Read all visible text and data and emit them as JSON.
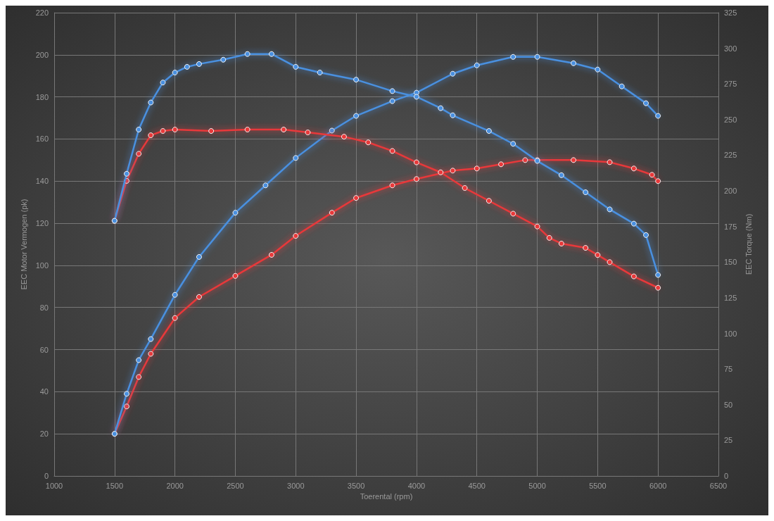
{
  "chart_data": {
    "type": "line",
    "xlabel": "Toerental (rpm)",
    "ylabel": "EEC Motor Vermogen (pk)",
    "y2label": "EEC Torque (Nm)",
    "xlim": [
      1000,
      6500
    ],
    "xticks": [
      1000,
      1500,
      2000,
      2500,
      3000,
      3500,
      4000,
      4500,
      5000,
      5500,
      6000,
      6500
    ],
    "ylim": [
      0,
      220
    ],
    "yticks": [
      0,
      20,
      40,
      60,
      80,
      100,
      120,
      140,
      160,
      180,
      200,
      220
    ],
    "y2lim": [
      0,
      325
    ],
    "y2ticks": [
      0,
      25,
      50,
      75,
      100,
      125,
      150,
      175,
      200,
      225,
      250,
      275,
      300,
      325
    ],
    "grid": true,
    "marker": "circle",
    "line_style": "solid",
    "series": [
      {
        "color": "#e8393a",
        "x": [
          1500,
          1600,
          1700,
          1800,
          2000,
          2200,
          2500,
          2800,
          3000,
          3300,
          3500,
          3800,
          4000,
          4300,
          4500,
          4700,
          4900,
          5000,
          5300,
          5600,
          5800,
          5950,
          6000
        ],
        "values": [
          20,
          33,
          47,
          58,
          75,
          85,
          95,
          105,
          114,
          125,
          132,
          138,
          141,
          145,
          146,
          148,
          150,
          150,
          150,
          149,
          146,
          143,
          140
        ]
      },
      {
        "color": "#4a90e0",
        "x": [
          1500,
          1600,
          1700,
          1800,
          2000,
          2200,
          2500,
          2750,
          3000,
          3300,
          3500,
          3800,
          4000,
          4300,
          4500,
          4800,
          5000,
          5300,
          5500,
          5700,
          5900,
          6000
        ],
        "values": [
          20,
          39,
          55,
          65,
          86,
          104,
          125,
          138,
          151,
          164,
          171,
          178,
          182,
          191,
          195,
          199,
          199,
          196,
          193,
          185,
          177,
          171
        ]
      },
      {
        "color": "#e8393a",
        "axis": "y2",
        "x": [
          1500,
          1600,
          1700,
          1800,
          1900,
          2000,
          2300,
          2600,
          2900,
          3100,
          3400,
          3600,
          3800,
          4000,
          4200,
          4400,
          4600,
          4800,
          5000,
          5100,
          5200,
          5400,
          5500,
          5600,
          5800,
          6000
        ],
        "values": [
          179,
          207,
          226,
          239,
          242,
          243,
          242,
          243,
          243,
          241,
          238,
          234,
          228,
          220,
          213,
          202,
          193,
          184,
          175,
          167,
          163,
          160,
          155,
          150,
          140,
          132
        ]
      },
      {
        "color": "#4a90e0",
        "axis": "y2",
        "x": [
          1500,
          1600,
          1700,
          1800,
          1900,
          2000,
          2100,
          2200,
          2400,
          2600,
          2800,
          3000,
          3200,
          3500,
          3800,
          4000,
          4200,
          4300,
          4600,
          4800,
          5000,
          5200,
          5400,
          5600,
          5800,
          5900,
          6000
        ],
        "values": [
          179,
          212,
          243,
          262,
          276,
          283,
          287,
          289,
          292,
          296,
          296,
          287,
          283,
          278,
          270,
          266,
          258,
          253,
          242,
          233,
          221,
          211,
          199,
          187,
          177,
          169,
          141
        ]
      }
    ]
  }
}
